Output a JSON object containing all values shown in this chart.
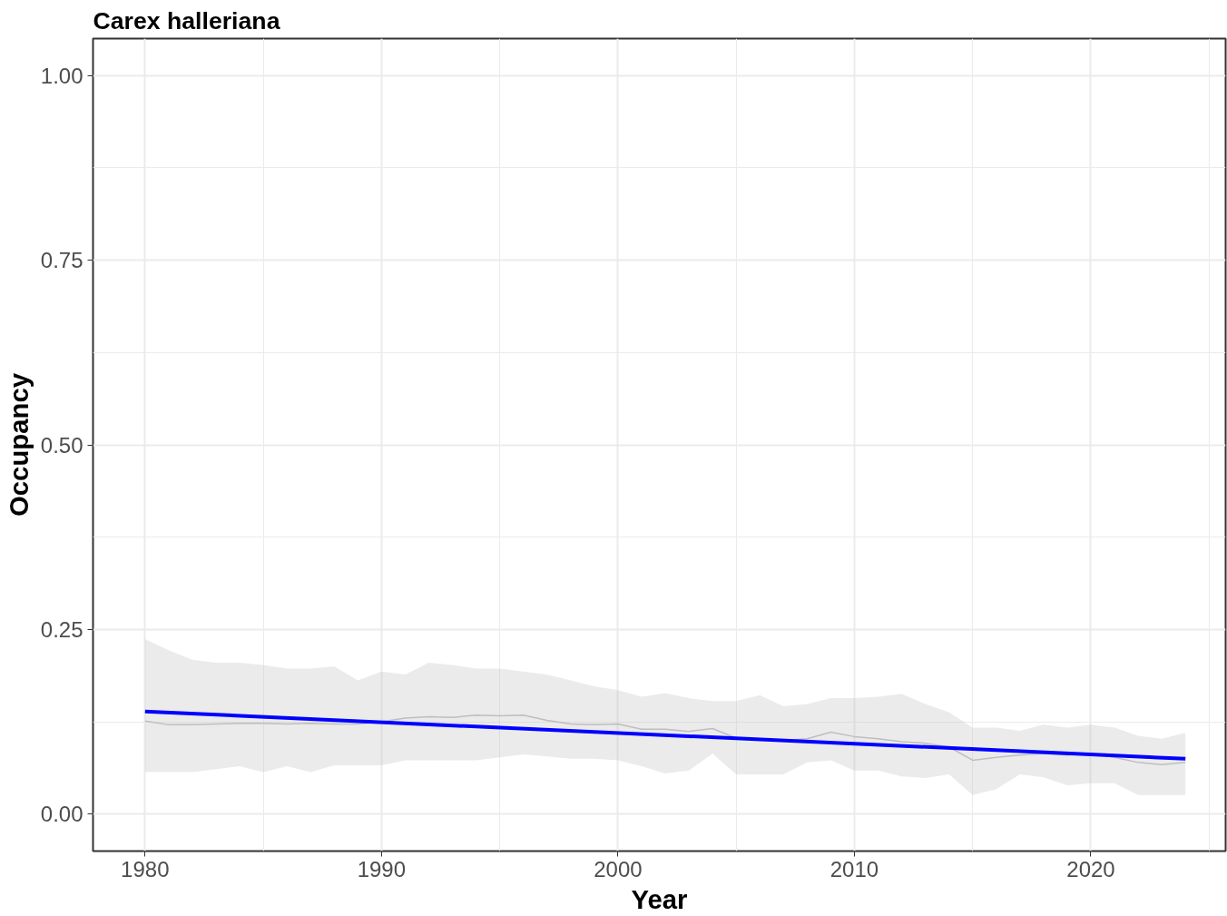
{
  "chart_data": {
    "type": "line",
    "title": "Carex halleriana",
    "xlabel": "Year",
    "ylabel": "Occupancy",
    "xlim": [
      1977.8,
      2025.7
    ],
    "ylim": [
      -0.05,
      1.05
    ],
    "xticks": [
      1980,
      1990,
      2000,
      2010,
      2020
    ],
    "yticks": [
      {
        "value": 0,
        "label": "0.00"
      },
      {
        "value": 0.25,
        "label": "0.25"
      },
      {
        "value": 0.5,
        "label": "0.50"
      },
      {
        "value": 0.75,
        "label": "0.75"
      },
      {
        "value": 1,
        "label": "1.00"
      }
    ],
    "grid": true,
    "marker": "none",
    "line_style": "solid",
    "series": [
      {
        "color": "#bebebe",
        "x": [
          1980,
          1981,
          1982,
          1983,
          1984,
          1985,
          1986,
          1987,
          1988,
          1989,
          1990,
          1991,
          1992,
          1993,
          1994,
          1995,
          1996,
          1997,
          1998,
          1999,
          2000,
          2001,
          2002,
          2003,
          2004,
          2005,
          2006,
          2007,
          2008,
          2009,
          2010,
          2011,
          2012,
          2013,
          2014,
          2015,
          2016,
          2017,
          2018,
          2019,
          2020,
          2021,
          2022,
          2023,
          2024
        ],
        "values": [
          0.126,
          0.121,
          0.121,
          0.122,
          0.123,
          0.123,
          0.122,
          0.123,
          0.122,
          0.122,
          0.125,
          0.13,
          0.132,
          0.131,
          0.134,
          0.133,
          0.134,
          0.127,
          0.122,
          0.121,
          0.122,
          0.115,
          0.115,
          0.112,
          0.116,
          0.103,
          0.101,
          0.1,
          0.102,
          0.111,
          0.105,
          0.102,
          0.098,
          0.096,
          0.091,
          0.073,
          0.077,
          0.08,
          0.082,
          0.08,
          0.082,
          0.077,
          0.07,
          0.067,
          0.07
        ],
        "lower": [
          0.057,
          0.057,
          0.057,
          0.061,
          0.065,
          0.057,
          0.065,
          0.057,
          0.066,
          0.066,
          0.066,
          0.073,
          0.073,
          0.073,
          0.073,
          0.077,
          0.081,
          0.078,
          0.075,
          0.075,
          0.073,
          0.065,
          0.055,
          0.059,
          0.082,
          0.054,
          0.054,
          0.054,
          0.07,
          0.073,
          0.059,
          0.059,
          0.051,
          0.049,
          0.054,
          0.026,
          0.034,
          0.054,
          0.05,
          0.039,
          0.042,
          0.042,
          0.026,
          0.026,
          0.026
        ],
        "upper": [
          0.237,
          0.222,
          0.209,
          0.205,
          0.205,
          0.202,
          0.197,
          0.197,
          0.2,
          0.181,
          0.193,
          0.189,
          0.205,
          0.202,
          0.197,
          0.197,
          0.193,
          0.189,
          0.181,
          0.173,
          0.168,
          0.159,
          0.164,
          0.157,
          0.153,
          0.153,
          0.161,
          0.146,
          0.149,
          0.157,
          0.157,
          0.159,
          0.163,
          0.149,
          0.138,
          0.117,
          0.117,
          0.113,
          0.121,
          0.117,
          0.121,
          0.117,
          0.106,
          0.102,
          0.11
        ]
      },
      {
        "color": "#0000ff",
        "x": [
          1980,
          2024
        ],
        "values": [
          0.139,
          0.075
        ]
      }
    ]
  }
}
